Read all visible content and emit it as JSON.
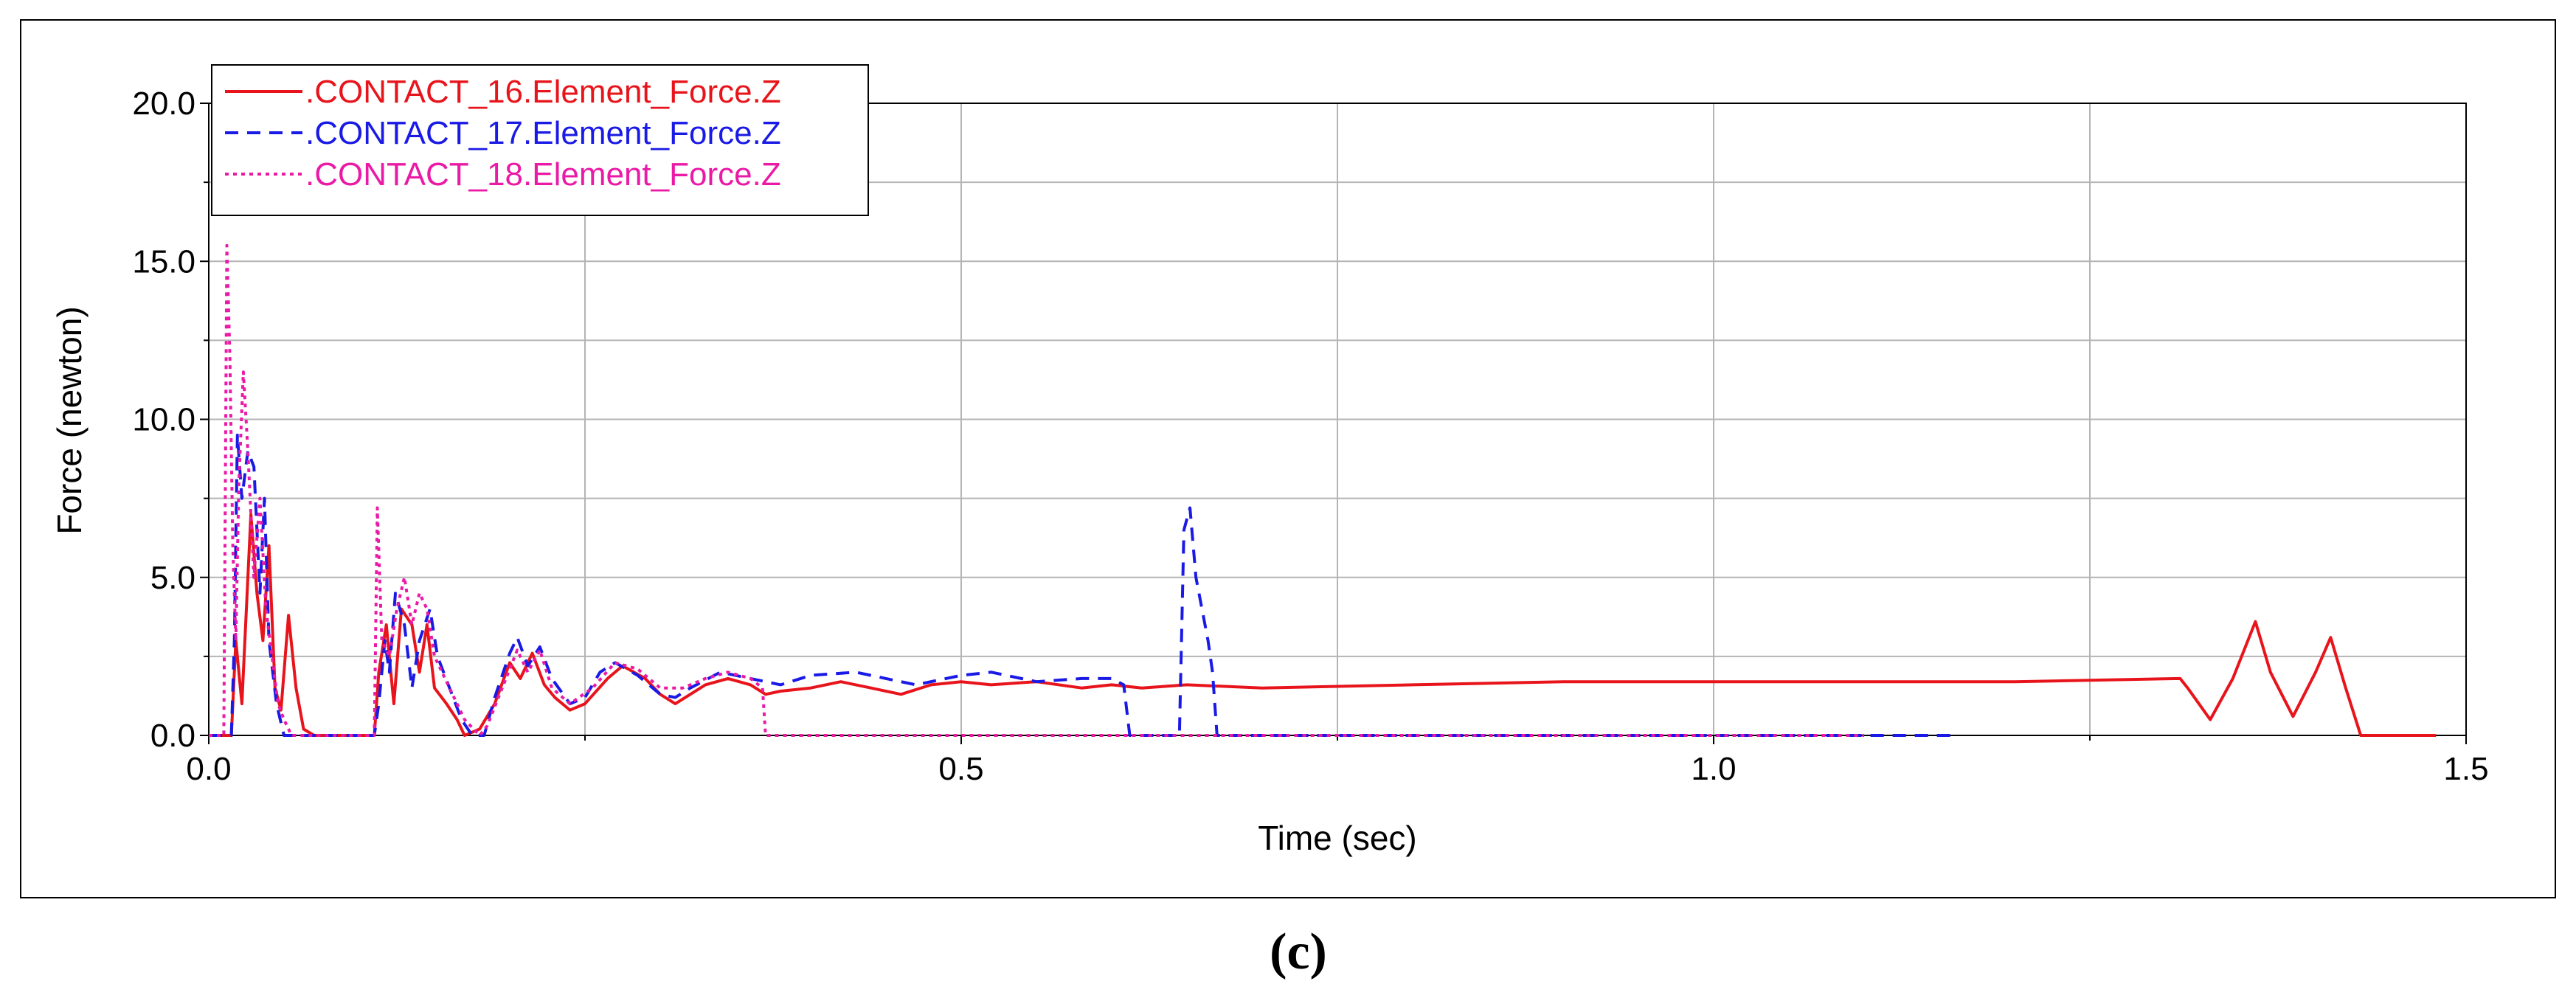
{
  "caption": "(c)",
  "chart_data": {
    "type": "line",
    "title": "",
    "xlabel": "Time (sec)",
    "ylabel": "Force (newton)",
    "xlim": [
      0.0,
      1.5
    ],
    "ylim": [
      0.0,
      20.0
    ],
    "x_ticks": [
      0.0,
      0.5,
      1.0,
      1.5
    ],
    "x_tick_labels": [
      "0.0",
      "0.5",
      "1.0",
      "1.5"
    ],
    "y_ticks": [
      0.0,
      5.0,
      10.0,
      15.0,
      20.0
    ],
    "y_tick_labels": [
      "0.0",
      "5.0",
      "10.0",
      "15.0",
      "20.0"
    ],
    "grid": true,
    "legend_position": "top-left",
    "series": [
      {
        "name": ".CONTACT_16.Element_Force.Z",
        "color": "#e8141b",
        "dash": "solid",
        "points": [
          [
            0.0,
            0
          ],
          [
            0.015,
            0
          ],
          [
            0.018,
            3.0
          ],
          [
            0.022,
            1.0
          ],
          [
            0.028,
            7.0
          ],
          [
            0.032,
            4.5
          ],
          [
            0.036,
            3.0
          ],
          [
            0.04,
            6.0
          ],
          [
            0.044,
            1.5
          ],
          [
            0.048,
            0.8
          ],
          [
            0.053,
            3.8
          ],
          [
            0.058,
            1.5
          ],
          [
            0.063,
            0.2
          ],
          [
            0.07,
            0
          ],
          [
            0.11,
            0
          ],
          [
            0.113,
            2.0
          ],
          [
            0.118,
            3.5
          ],
          [
            0.123,
            1.0
          ],
          [
            0.128,
            4.0
          ],
          [
            0.135,
            3.5
          ],
          [
            0.14,
            2.0
          ],
          [
            0.145,
            3.5
          ],
          [
            0.15,
            1.5
          ],
          [
            0.158,
            1.0
          ],
          [
            0.165,
            0.5
          ],
          [
            0.17,
            0
          ],
          [
            0.18,
            0.2
          ],
          [
            0.19,
            1.0
          ],
          [
            0.2,
            2.3
          ],
          [
            0.207,
            1.8
          ],
          [
            0.215,
            2.6
          ],
          [
            0.223,
            1.6
          ],
          [
            0.23,
            1.2
          ],
          [
            0.24,
            0.8
          ],
          [
            0.25,
            1.0
          ],
          [
            0.265,
            1.8
          ],
          [
            0.275,
            2.2
          ],
          [
            0.29,
            1.8
          ],
          [
            0.3,
            1.3
          ],
          [
            0.31,
            1.0
          ],
          [
            0.32,
            1.3
          ],
          [
            0.33,
            1.6
          ],
          [
            0.345,
            1.8
          ],
          [
            0.36,
            1.6
          ],
          [
            0.37,
            1.3
          ],
          [
            0.38,
            1.4
          ],
          [
            0.4,
            1.5
          ],
          [
            0.42,
            1.7
          ],
          [
            0.44,
            1.5
          ],
          [
            0.46,
            1.3
          ],
          [
            0.48,
            1.6
          ],
          [
            0.5,
            1.7
          ],
          [
            0.52,
            1.6
          ],
          [
            0.55,
            1.7
          ],
          [
            0.58,
            1.5
          ],
          [
            0.6,
            1.6
          ],
          [
            0.62,
            1.5
          ],
          [
            0.65,
            1.6
          ],
          [
            0.7,
            1.5
          ],
          [
            0.8,
            1.6
          ],
          [
            0.9,
            1.7
          ],
          [
            1.0,
            1.7
          ],
          [
            1.1,
            1.7
          ],
          [
            1.2,
            1.7
          ],
          [
            1.31,
            1.8
          ],
          [
            1.315,
            1.5
          ],
          [
            1.33,
            0.5
          ],
          [
            1.345,
            1.8
          ],
          [
            1.36,
            3.6
          ],
          [
            1.37,
            2.0
          ],
          [
            1.385,
            0.6
          ],
          [
            1.4,
            2.0
          ],
          [
            1.41,
            3.1
          ],
          [
            1.42,
            1.5
          ],
          [
            1.43,
            0
          ],
          [
            1.435,
            0
          ],
          [
            1.48,
            0
          ]
        ]
      },
      {
        "name": ".CONTACT_17.Element_Force.Z",
        "color": "#1a1ae6",
        "dash": "dashed",
        "points": [
          [
            0.0,
            0
          ],
          [
            0.015,
            0
          ],
          [
            0.017,
            3.0
          ],
          [
            0.019,
            9.5
          ],
          [
            0.022,
            7.5
          ],
          [
            0.026,
            9.0
          ],
          [
            0.03,
            8.5
          ],
          [
            0.034,
            4.5
          ],
          [
            0.037,
            7.5
          ],
          [
            0.04,
            3.0
          ],
          [
            0.045,
            1.0
          ],
          [
            0.05,
            0
          ],
          [
            0.11,
            0
          ],
          [
            0.113,
            1.0
          ],
          [
            0.117,
            3.0
          ],
          [
            0.12,
            2.0
          ],
          [
            0.124,
            4.5
          ],
          [
            0.13,
            3.5
          ],
          [
            0.135,
            1.5
          ],
          [
            0.14,
            3.0
          ],
          [
            0.147,
            4.0
          ],
          [
            0.152,
            2.5
          ],
          [
            0.16,
            1.5
          ],
          [
            0.168,
            0.5
          ],
          [
            0.175,
            0
          ],
          [
            0.183,
            0
          ],
          [
            0.19,
            1.2
          ],
          [
            0.2,
            2.6
          ],
          [
            0.205,
            3.1
          ],
          [
            0.212,
            2.2
          ],
          [
            0.22,
            2.8
          ],
          [
            0.228,
            1.8
          ],
          [
            0.24,
            1.0
          ],
          [
            0.25,
            1.2
          ],
          [
            0.26,
            2.0
          ],
          [
            0.27,
            2.3
          ],
          [
            0.285,
            1.9
          ],
          [
            0.3,
            1.3
          ],
          [
            0.31,
            1.2
          ],
          [
            0.32,
            1.5
          ],
          [
            0.34,
            2.0
          ],
          [
            0.36,
            1.8
          ],
          [
            0.38,
            1.6
          ],
          [
            0.4,
            1.9
          ],
          [
            0.43,
            2.0
          ],
          [
            0.45,
            1.8
          ],
          [
            0.47,
            1.6
          ],
          [
            0.5,
            1.9
          ],
          [
            0.52,
            2.0
          ],
          [
            0.55,
            1.7
          ],
          [
            0.58,
            1.8
          ],
          [
            0.6,
            1.8
          ],
          [
            0.608,
            1.6
          ],
          [
            0.612,
            0
          ],
          [
            0.645,
            0
          ],
          [
            0.648,
            6.5
          ],
          [
            0.652,
            7.2
          ],
          [
            0.656,
            5.0
          ],
          [
            0.66,
            4.0
          ],
          [
            0.664,
            3.0
          ],
          [
            0.667,
            2.0
          ],
          [
            0.67,
            0
          ],
          [
            1.16,
            0
          ]
        ]
      },
      {
        "name": ".CONTACT_18.Element_Force.Z",
        "color": "#ea1aa6",
        "dash": "dotted",
        "points": [
          [
            0.0,
            0
          ],
          [
            0.01,
            0
          ],
          [
            0.012,
            15.5
          ],
          [
            0.014,
            12.0
          ],
          [
            0.016,
            6.0
          ],
          [
            0.018,
            3.0
          ],
          [
            0.02,
            8.0
          ],
          [
            0.023,
            11.5
          ],
          [
            0.026,
            9.0
          ],
          [
            0.03,
            5.0
          ],
          [
            0.034,
            7.5
          ],
          [
            0.038,
            4.0
          ],
          [
            0.042,
            2.5
          ],
          [
            0.046,
            1.0
          ],
          [
            0.05,
            0.5
          ],
          [
            0.055,
            0
          ],
          [
            0.11,
            0
          ],
          [
            0.112,
            7.2
          ],
          [
            0.115,
            3.0
          ],
          [
            0.12,
            2.5
          ],
          [
            0.125,
            4.0
          ],
          [
            0.13,
            5.0
          ],
          [
            0.135,
            3.5
          ],
          [
            0.14,
            4.5
          ],
          [
            0.145,
            4.0
          ],
          [
            0.15,
            2.5
          ],
          [
            0.16,
            1.5
          ],
          [
            0.17,
            0.5
          ],
          [
            0.18,
            0
          ],
          [
            0.185,
            0.3
          ],
          [
            0.195,
            1.5
          ],
          [
            0.205,
            2.7
          ],
          [
            0.212,
            2.0
          ],
          [
            0.22,
            2.7
          ],
          [
            0.228,
            1.5
          ],
          [
            0.24,
            1.0
          ],
          [
            0.255,
            1.5
          ],
          [
            0.27,
            2.3
          ],
          [
            0.285,
            2.1
          ],
          [
            0.3,
            1.5
          ],
          [
            0.315,
            1.5
          ],
          [
            0.33,
            1.8
          ],
          [
            0.345,
            2.0
          ],
          [
            0.36,
            1.8
          ],
          [
            0.368,
            1.5
          ],
          [
            0.37,
            0
          ],
          [
            1.1,
            0
          ]
        ]
      }
    ]
  }
}
